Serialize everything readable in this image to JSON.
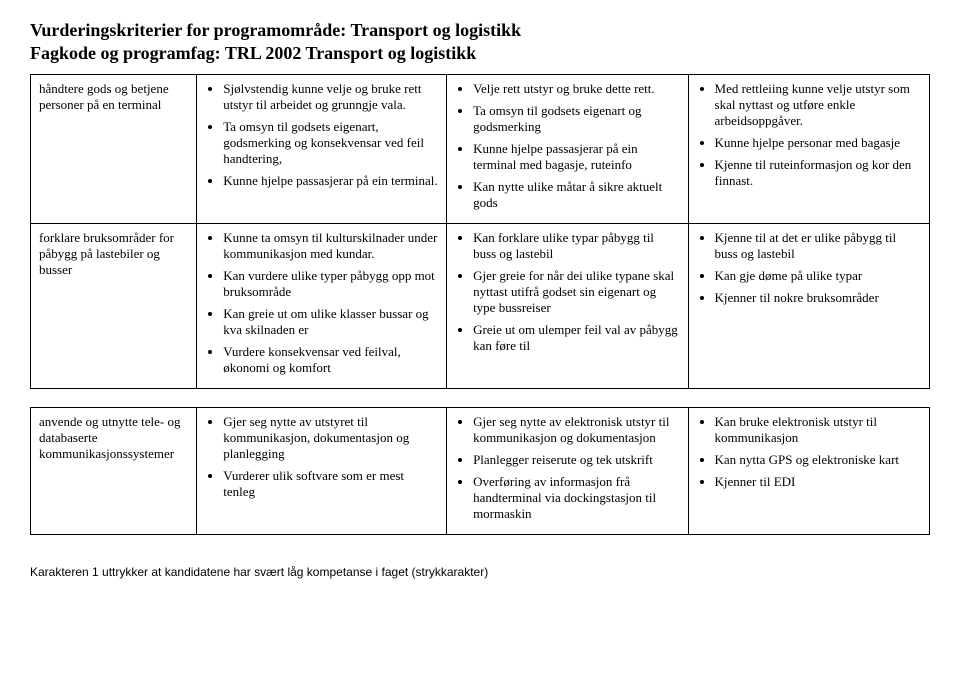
{
  "header": {
    "title": "Vurderingskriterier for programområde: Transport og logistikk",
    "subtitle": "Fagkode og programfag: TRL 2002  Transport og logistikk"
  },
  "rows": [
    {
      "col1": "håndtere gods og betjene personer på en terminal",
      "col2": [
        "Sjølvstendig kunne velje og bruke rett utstyr til arbeidet og grunngje vala.",
        "Ta omsyn til godsets eigenart, godsmerking og konsekvensar ved feil handtering,",
        "Kunne hjelpe passasjerar på ein terminal."
      ],
      "col3": [
        "Velje rett utstyr og bruke dette rett.",
        "Ta omsyn til godsets eigenart og godsmerking",
        "Kunne hjelpe passasjerar på ein terminal med bagasje, ruteinfo",
        "Kan nytte ulike måtar å sikre aktuelt gods"
      ],
      "col4": [
        "Med rettleiing kunne velje utstyr som skal nyttast og utføre enkle arbeidsoppgåver.",
        "Kunne hjelpe personar med bagasje",
        "Kjenne til ruteinformasjon og kor den finnast."
      ]
    },
    {
      "col1": "forklare bruksområder for påbygg på lastebiler og busser",
      "col2": [
        "Kunne ta omsyn til kulturskilnader under kommunikasjon med kundar.",
        "Kan vurdere ulike typer påbygg opp mot bruksområde",
        "Kan greie ut om ulike klasser bussar og kva skilnaden er",
        "Vurdere konsekvensar ved feilval, økonomi og komfort"
      ],
      "col3": [
        "Kan forklare ulike typar påbygg til buss og lastebil",
        "Gjer greie for når dei ulike typane skal nyttast utifrå godset sin eigenart og type bussreiser",
        "Greie ut om ulemper feil val av påbygg kan føre til"
      ],
      "col4": [
        "Kjenne til at det er ulike påbygg til buss og lastebil",
        "Kan gje døme på ulike typar",
        "Kjenner til nokre bruksområder"
      ]
    },
    {
      "col1": "anvende og utnytte tele- og databaserte kommunikasjonssystemer",
      "col2": [
        "Gjer seg nytte av utstyret til kommunikasjon, dokumentasjon og planlegging",
        "Vurderer ulik softvare som er mest tenleg"
      ],
      "col3": [
        "Gjer seg nytte av elektronisk utstyr til kommunikasjon og dokumentasjon",
        "Planlegger reiserute og tek utskrift",
        "Overføring av informasjon frå handterminal via dockingstasjon til mormaskin"
      ],
      "col4": [
        "Kan bruke elektronisk utstyr til kommunikasjon",
        "Kan nytta GPS og elektroniske kart",
        "Kjenner til EDI"
      ]
    }
  ],
  "footer": "Karakteren 1 uttrykker at kandidatene har svært låg kompetanse i faget (strykkarakter)"
}
